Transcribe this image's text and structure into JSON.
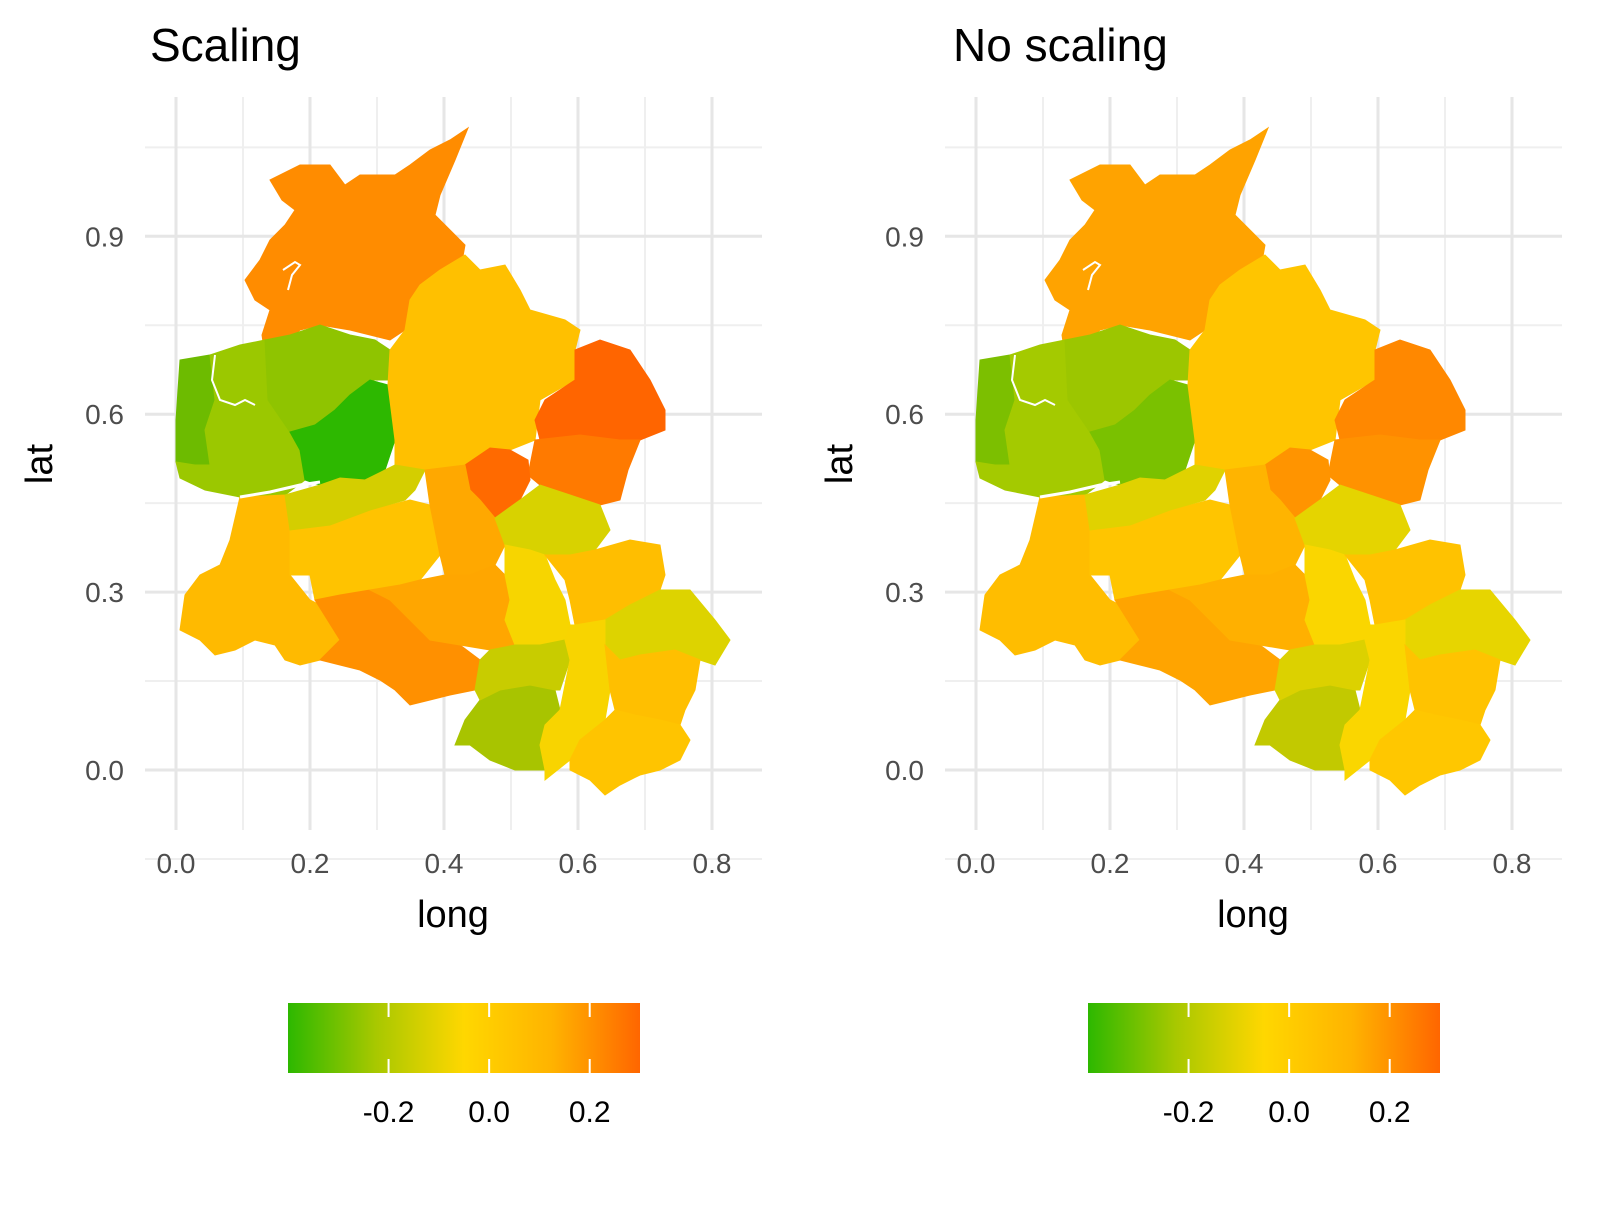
{
  "panels": [
    {
      "title": "Scaling",
      "xlabel": "long",
      "ylabel": "lat",
      "xticks": [
        "0.0",
        "0.2",
        "0.4",
        "0.6",
        "0.8"
      ],
      "yticks": [
        "0.9",
        "0.6",
        "0.3",
        "0.0"
      ],
      "legend_ticks": [
        "-0.2",
        "0.0",
        "0.2"
      ],
      "regions": [
        {
          "id": "north",
          "color": "#FF8C00"
        },
        {
          "id": "west-strip",
          "color": "#6DBB00"
        },
        {
          "id": "west-coast",
          "color": "#9BC800"
        },
        {
          "id": "west-mid",
          "color": "#8FC400"
        },
        {
          "id": "west-green",
          "color": "#2DB800"
        },
        {
          "id": "center-north",
          "color": "#FFC000"
        },
        {
          "id": "east-north",
          "color": "#FF6500"
        },
        {
          "id": "east-mid",
          "color": "#FF7A00"
        },
        {
          "id": "center-dark",
          "color": "#FF6A00"
        },
        {
          "id": "sw",
          "color": "#FFBA00"
        },
        {
          "id": "south-center-left",
          "color": "#FFC300"
        },
        {
          "id": "belt",
          "color": "#D4CE00"
        },
        {
          "id": "center-south-1",
          "color": "#FFA800"
        },
        {
          "id": "south-dark",
          "color": "#FF9000"
        },
        {
          "id": "south-mid",
          "color": "#FFA600"
        },
        {
          "id": "east-yel-green",
          "color": "#D8D200"
        },
        {
          "id": "center-yel",
          "color": "#F7D500"
        },
        {
          "id": "east-orange",
          "color": "#FFBE00"
        },
        {
          "id": "far-east",
          "color": "#DDD300"
        },
        {
          "id": "se-green",
          "color": "#A8C400"
        },
        {
          "id": "s-mid-green",
          "color": "#C8CC00"
        },
        {
          "id": "s-yellow",
          "color": "#F8D400"
        },
        {
          "id": "se-orange",
          "color": "#FFBF00"
        },
        {
          "id": "se-south",
          "color": "#FFC400"
        }
      ]
    },
    {
      "title": "No scaling",
      "xlabel": "long",
      "ylabel": "lat",
      "xticks": [
        "0.0",
        "0.2",
        "0.4",
        "0.6",
        "0.8"
      ],
      "yticks": [
        "0.9",
        "0.6",
        "0.3",
        "0.0"
      ],
      "legend_ticks": [
        "-0.2",
        "0.0",
        "0.2"
      ],
      "regions": [
        {
          "id": "north",
          "color": "#FFA300"
        },
        {
          "id": "west-strip",
          "color": "#7CBF00"
        },
        {
          "id": "west-coast",
          "color": "#A4CA00"
        },
        {
          "id": "west-mid",
          "color": "#9CC600"
        },
        {
          "id": "west-green",
          "color": "#7AC100"
        },
        {
          "id": "center-north",
          "color": "#FFC500"
        },
        {
          "id": "east-north",
          "color": "#FF8800"
        },
        {
          "id": "east-mid",
          "color": "#FF9200"
        },
        {
          "id": "center-dark",
          "color": "#FF9400"
        },
        {
          "id": "sw",
          "color": "#FFBD00"
        },
        {
          "id": "south-center-left",
          "color": "#FFC500"
        },
        {
          "id": "belt",
          "color": "#E0D200"
        },
        {
          "id": "center-south-1",
          "color": "#FFB400"
        },
        {
          "id": "south-dark",
          "color": "#FFA400"
        },
        {
          "id": "south-mid",
          "color": "#FFB000"
        },
        {
          "id": "east-yel-green",
          "color": "#E5D400"
        },
        {
          "id": "center-yel",
          "color": "#FAD600"
        },
        {
          "id": "east-orange",
          "color": "#FFC200"
        },
        {
          "id": "far-east",
          "color": "#E7D500"
        },
        {
          "id": "se-green",
          "color": "#C2C900"
        },
        {
          "id": "s-mid-green",
          "color": "#DCD100"
        },
        {
          "id": "s-yellow",
          "color": "#FAD600"
        },
        {
          "id": "se-orange",
          "color": "#FFC300"
        },
        {
          "id": "se-south",
          "color": "#FFC700"
        }
      ]
    }
  ],
  "legend_colors": [
    "#2DB800",
    "#A8C800",
    "#FFD700",
    "#FFB300",
    "#FF6600"
  ]
}
